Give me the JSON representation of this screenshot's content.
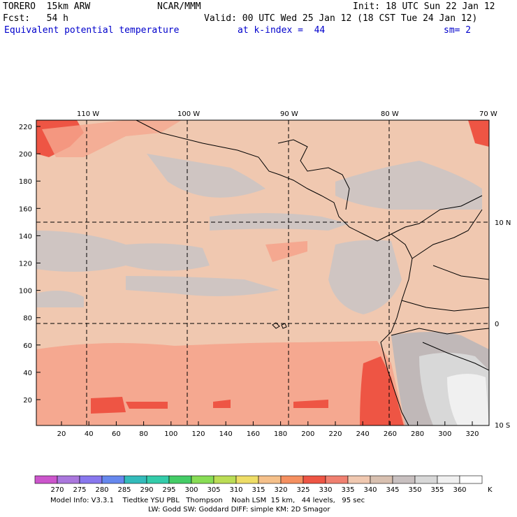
{
  "header": {
    "model": "TORERO  15km ARW",
    "center": "NCAR/MMM",
    "init": "Init: 18 UTC Sun 22 Jan 12",
    "fcst": "Fcst:   54 h",
    "valid": "Valid: 00 UTC Wed 25 Jan 12 (18 CST Tue 24 Jan 12)",
    "field": "Equivalent potential temperature",
    "level": "at k-index =  44",
    "smooth": "sm= 2"
  },
  "map": {
    "top_labels": [
      "110 W",
      "100 W",
      "90 W",
      "80 W",
      "70 W"
    ],
    "right_labels": [
      "10 N",
      "0",
      "10 S"
    ],
    "y_ticks": [
      "220",
      "200",
      "180",
      "160",
      "140",
      "120",
      "100",
      "80",
      "60",
      "40",
      "20"
    ],
    "x_ticks": [
      "20",
      "40",
      "60",
      "80",
      "100",
      "120",
      "140",
      "160",
      "180",
      "200",
      "220",
      "240",
      "260",
      "280",
      "300",
      "320"
    ]
  },
  "legend": {
    "unit": "K",
    "levels": [
      "270",
      "275",
      "280",
      "285",
      "290",
      "295",
      "300",
      "305",
      "310",
      "315",
      "320",
      "325",
      "330",
      "335",
      "340",
      "345",
      "350",
      "355",
      "360"
    ],
    "colors": [
      "#cc55cc",
      "#aa77dd",
      "#8877ee",
      "#6688ee",
      "#33bbbb",
      "#33ccaa",
      "#44cc66",
      "#88dd55",
      "#bbdd55",
      "#eedd66",
      "#f5c08a",
      "#f59060",
      "#ee5544",
      "#f08070",
      "#f0c8b0",
      "#d8c0b0",
      "#c8c0c0",
      "#d8d8d8",
      "#f0f0f0",
      "#ffffff"
    ]
  },
  "footer": {
    "line1": "Model Info: V3.3.1    Tiedtke YSU PBL   Thompson    Noah LSM  15 km,   44 levels,   95 sec",
    "line2": "LW: Godd SW: Goddard DIFF: simple KM: 2D Smagor"
  }
}
